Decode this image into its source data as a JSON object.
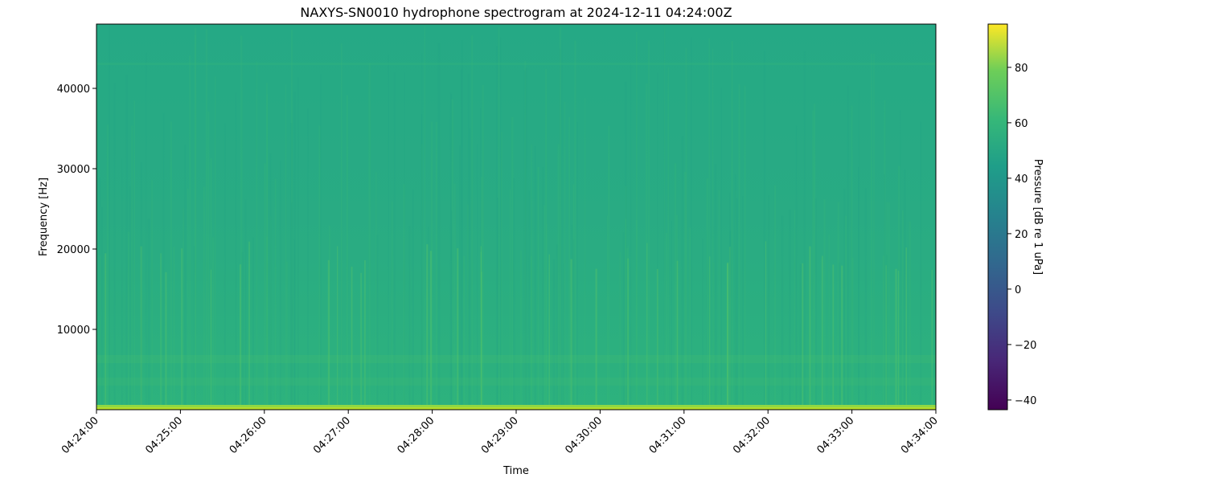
{
  "chart_data": {
    "type": "heatmap",
    "title": "NAXYS-SN0010 hydrophone spectrogram at 2024-12-11 04:24:00Z",
    "xlabel": "Time",
    "ylabel": "Frequency [Hz]",
    "xlim": [
      "04:24:00",
      "04:34:00"
    ],
    "ylim": [
      0,
      48000
    ],
    "x_ticks": [
      "04:24:00",
      "04:25:00",
      "04:26:00",
      "04:27:00",
      "04:28:00",
      "04:29:00",
      "04:30:00",
      "04:31:00",
      "04:32:00",
      "04:33:00",
      "04:34:00"
    ],
    "y_ticks": [
      10000,
      20000,
      30000,
      40000
    ],
    "colormap": "viridis",
    "colorbar": {
      "label": "Pressure [dB re 1 uPa]",
      "range": [
        -43.5,
        95.6
      ],
      "ticks": [
        -40,
        -20,
        0,
        20,
        40,
        60,
        80
      ]
    },
    "levels": {
      "background_db": 47,
      "low_frequency_band_db": 70,
      "transient_streaks_db": 58
    },
    "grid": false
  }
}
